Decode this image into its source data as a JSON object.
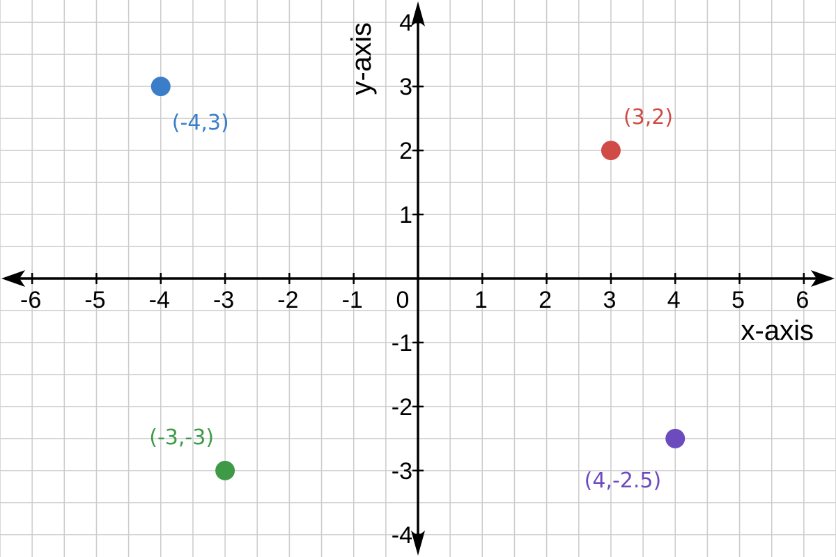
{
  "chart_data": {
    "type": "scatter",
    "xlabel": "x-axis",
    "ylabel": "y-axis",
    "xlim": [
      -6.5,
      6.5
    ],
    "ylim": [
      -4.35,
      4.35
    ],
    "grid": true,
    "grid_step": 0.5,
    "x_ticks": [
      -6,
      -5,
      -4,
      -3,
      -2,
      -1,
      0,
      1,
      2,
      3,
      4,
      5,
      6
    ],
    "y_ticks": [
      -4,
      -3,
      -2,
      -1,
      1,
      2,
      3,
      4
    ],
    "points": [
      {
        "x": -4,
        "y": 3,
        "label": "(-4,3)",
        "color": "#3a7dc9",
        "label_pos": "below-right"
      },
      {
        "x": 3,
        "y": 2,
        "label": "(3,2)",
        "color": "#d04b45",
        "label_pos": "above-right"
      },
      {
        "x": -3,
        "y": -3,
        "label": "(-3,-3)",
        "color": "#3f9a48",
        "label_pos": "above-left"
      },
      {
        "x": 4,
        "y": -2.5,
        "label": "(4,-2.5)",
        "color": "#6b4bbd",
        "label_pos": "below-left"
      }
    ],
    "axis_color": "#000000",
    "grid_color": "#cccccc"
  }
}
